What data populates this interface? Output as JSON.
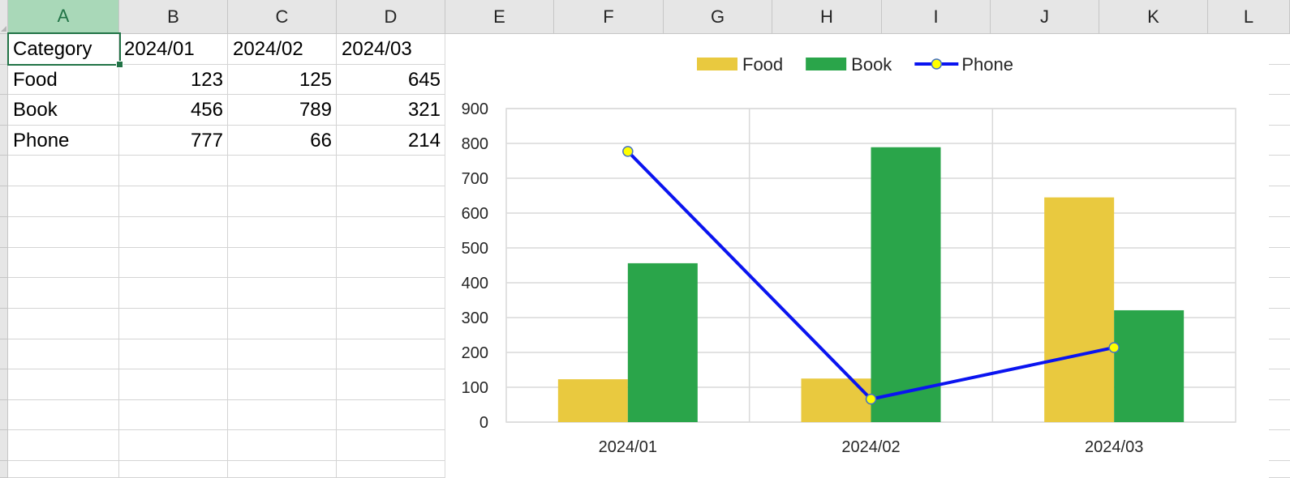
{
  "sheet": {
    "columns": [
      "A",
      "B",
      "C",
      "D",
      "E",
      "F",
      "G",
      "H",
      "I",
      "J",
      "K",
      "L"
    ],
    "selected_column": "A",
    "rows": [
      {
        "cells": [
          "Category",
          "2024/01",
          "2024/02",
          "2024/03"
        ]
      },
      {
        "cells": [
          "Food",
          "123",
          "125",
          "645"
        ]
      },
      {
        "cells": [
          "Book",
          "456",
          "789",
          "321"
        ]
      },
      {
        "cells": [
          "Phone",
          "777",
          "66",
          "214"
        ]
      }
    ]
  },
  "chart_data": {
    "type": "bar",
    "categories": [
      "2024/01",
      "2024/02",
      "2024/03"
    ],
    "series": [
      {
        "name": "Food",
        "kind": "bar",
        "color": "#e9c93f",
        "values": [
          123,
          125,
          645
        ]
      },
      {
        "name": "Book",
        "kind": "bar",
        "color": "#2aa54a",
        "values": [
          456,
          789,
          321
        ]
      },
      {
        "name": "Phone",
        "kind": "line",
        "color": "#0a14f0",
        "marker_color": "#ffff00",
        "values": [
          777,
          66,
          214
        ]
      }
    ],
    "ylim": [
      0,
      900
    ],
    "yticks": [
      0,
      100,
      200,
      300,
      400,
      500,
      600,
      700,
      800,
      900
    ],
    "grid": true,
    "legend": "top"
  }
}
